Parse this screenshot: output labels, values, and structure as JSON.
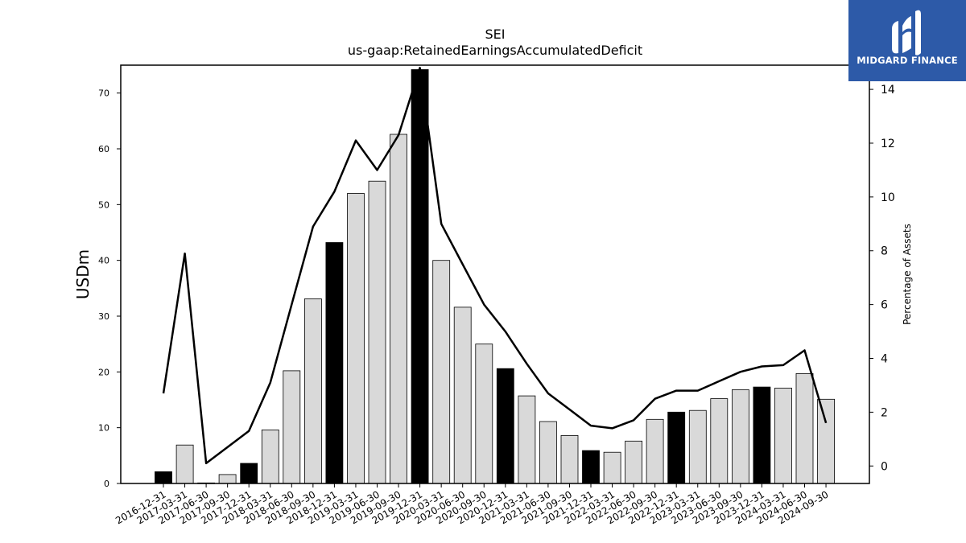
{
  "brand": {
    "name": "MIDGARD FINANCE",
    "icon": "midgard-finance-logo-icon",
    "color": "#2d5aa8"
  },
  "chart_data": {
    "type": "bar",
    "title": "SEI",
    "subtitle": "us-gaap:RetainedEarningsAccumulatedDeficit",
    "ylabel": "USDm",
    "y2label": "Percentage of Assets",
    "ylim": [
      0,
      75
    ],
    "y2lim": [
      -0.65,
      14.9
    ],
    "yticks": [
      0,
      10,
      20,
      30,
      40,
      50,
      60,
      70
    ],
    "y2ticks": [
      0,
      2,
      4,
      6,
      8,
      10,
      12,
      14
    ],
    "grid": false,
    "categories": [
      "2016-12-31",
      "2017-03-31",
      "2017-06-30",
      "2017-09-30",
      "2017-12-31",
      "2018-03-31",
      "2018-06-30",
      "2018-09-30",
      "2018-12-31",
      "2019-03-31",
      "2019-06-30",
      "2019-09-30",
      "2019-12-31",
      "2020-03-31",
      "2020-06-30",
      "2020-09-30",
      "2020-12-31",
      "2021-03-31",
      "2021-06-30",
      "2021-09-30",
      "2021-12-31",
      "2022-03-31",
      "2022-06-30",
      "2022-09-30",
      "2022-12-31",
      "2023-03-31",
      "2023-06-30",
      "2023-09-30",
      "2023-12-31",
      "2024-03-31",
      "2024-06-30",
      "2024-09-30"
    ],
    "series": [
      {
        "kind": "bar",
        "axis": "left",
        "values": [
          2.1,
          6.9,
          0.1,
          1.6,
          3.6,
          9.6,
          20.2,
          33.1,
          43.2,
          52.0,
          54.2,
          62.6,
          74.2,
          40.0,
          31.6,
          25.0,
          20.6,
          15.7,
          11.1,
          8.6,
          5.9,
          5.6,
          7.6,
          11.5,
          12.8,
          13.1,
          15.2,
          16.8,
          17.3,
          17.1,
          19.7,
          15.1
        ],
        "highlight_color": "#000000",
        "default_color": "#d9d9d9",
        "highlighted_categories": [
          "2016-12-31",
          "2017-12-31",
          "2018-12-31",
          "2019-12-31",
          "2020-12-31",
          "2021-12-31",
          "2022-12-31",
          "2023-12-31"
        ]
      },
      {
        "kind": "line",
        "axis": "right",
        "color": "#000000",
        "values": [
          2.7,
          7.9,
          0.1,
          0.7,
          1.3,
          3.1,
          6.0,
          8.9,
          10.2,
          12.1,
          11.0,
          12.3,
          14.8,
          9.0,
          7.5,
          6.0,
          5.0,
          3.8,
          2.7,
          2.1,
          1.5,
          1.4,
          1.7,
          2.5,
          2.8,
          2.8,
          3.15,
          3.5,
          3.7,
          3.75,
          4.3,
          1.6
        ]
      }
    ]
  }
}
